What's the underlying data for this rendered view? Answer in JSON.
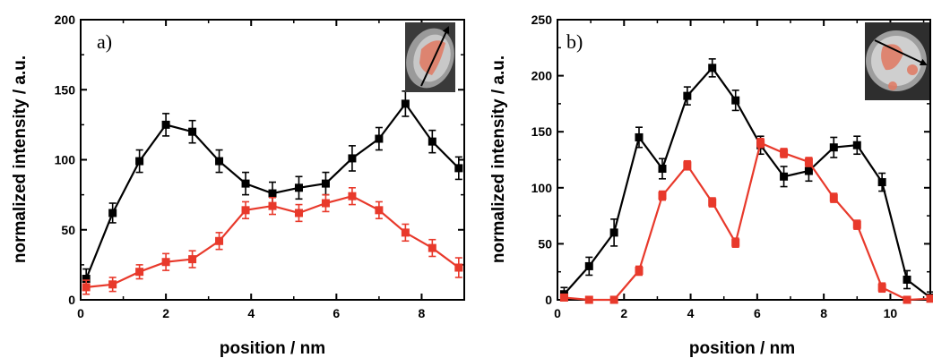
{
  "chart_data": [
    {
      "type": "line",
      "panel_label": "a)",
      "xlabel": "position / nm",
      "ylabel": "normalized intensity / a.u.",
      "xlim": [
        0,
        9
      ],
      "ylim": [
        0,
        200
      ],
      "xticks": [
        0,
        2,
        4,
        6,
        8
      ],
      "yticks": [
        0,
        50,
        100,
        150,
        200
      ],
      "grid": false,
      "series": [
        {
          "color": "#000000",
          "marker": "square",
          "x": [
            0.13,
            0.75,
            1.38,
            2.0,
            2.62,
            3.25,
            3.87,
            4.5,
            5.12,
            5.75,
            6.37,
            7.0,
            7.62,
            8.25,
            8.87
          ],
          "y": [
            15,
            62,
            99,
            125,
            120,
            99,
            83,
            76,
            80,
            83,
            101,
            115,
            140,
            113,
            94
          ],
          "err": [
            7,
            7,
            8,
            8,
            8,
            8,
            8,
            8,
            8,
            8,
            9,
            8,
            9,
            8,
            8
          ]
        },
        {
          "color": "#e8392b",
          "marker": "square",
          "x": [
            0.13,
            0.75,
            1.38,
            2.0,
            2.62,
            3.25,
            3.87,
            4.5,
            5.12,
            5.75,
            6.37,
            7.0,
            7.62,
            8.25,
            8.87
          ],
          "y": [
            9,
            11,
            20,
            27,
            29,
            42,
            64,
            67,
            62,
            69,
            74,
            64,
            48,
            37,
            23
          ],
          "err": [
            5,
            5,
            5,
            6,
            6,
            6,
            6,
            6,
            6,
            6,
            6,
            6,
            6,
            6,
            7
          ]
        }
      ]
    },
    {
      "type": "line",
      "panel_label": "b)",
      "xlabel": "position / nm",
      "ylabel": "normalized intensity / a.u.",
      "xlim": [
        0,
        11.2
      ],
      "ylim": [
        0,
        250
      ],
      "xticks": [
        0,
        2,
        4,
        6,
        8,
        10
      ],
      "yticks": [
        0,
        50,
        100,
        150,
        200,
        250
      ],
      "grid": false,
      "series": [
        {
          "color": "#000000",
          "marker": "square",
          "x": [
            0.2,
            0.95,
            1.7,
            2.45,
            3.15,
            3.9,
            4.65,
            5.35,
            6.1,
            6.8,
            7.55,
            8.3,
            9.0,
            9.75,
            10.5,
            11.2
          ],
          "y": [
            5,
            30,
            60,
            145,
            117,
            182,
            207,
            178,
            138,
            110,
            115,
            136,
            138,
            105,
            18,
            2
          ],
          "err": [
            6,
            8,
            12,
            9,
            9,
            8,
            8,
            9,
            8,
            9,
            9,
            9,
            8,
            8,
            8,
            5
          ]
        },
        {
          "color": "#e8392b",
          "marker": "square",
          "x": [
            0.2,
            0.95,
            1.7,
            2.45,
            3.15,
            3.9,
            4.65,
            5.35,
            6.1,
            6.8,
            7.55,
            8.3,
            9.0,
            9.75,
            10.5,
            11.2
          ],
          "y": [
            2,
            0,
            0,
            26,
            93,
            120,
            87,
            51,
            140,
            131,
            123,
            91,
            67,
            11,
            0,
            1
          ],
          "err": [
            3,
            3,
            3,
            4,
            4,
            4,
            4,
            4,
            4,
            4,
            4,
            4,
            4,
            4,
            3,
            3
          ]
        }
      ]
    }
  ]
}
